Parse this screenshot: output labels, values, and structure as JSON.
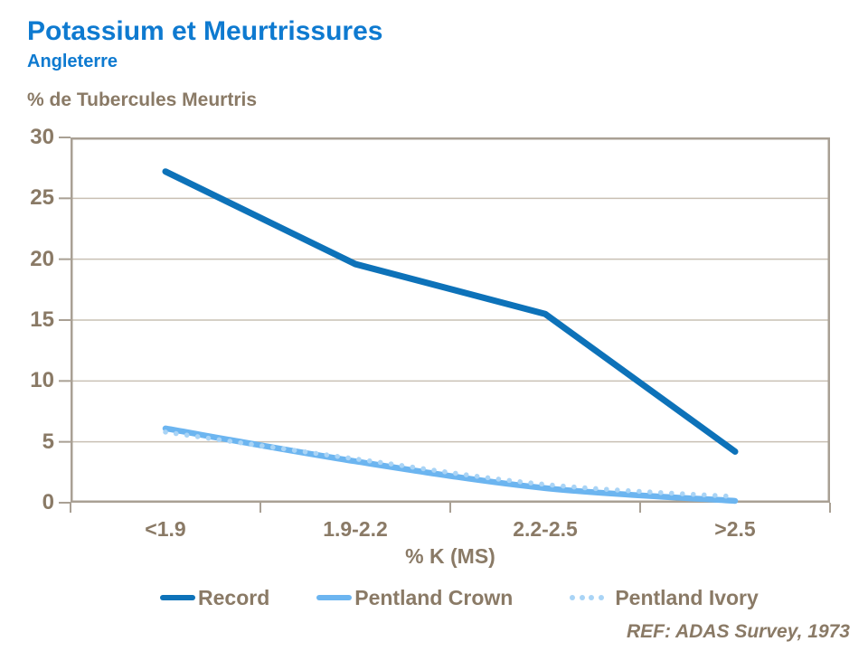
{
  "chart_data": {
    "type": "line",
    "title": "Potassium et Meurtrissures",
    "subtitle": "Angleterre",
    "y_axis_title": "% de Tubercules Meurtris",
    "x_axis_title": "% K (MS)",
    "categories": [
      "<1.9",
      "1.9-2.2",
      "2.2-2.5",
      ">2.5"
    ],
    "y_ticks": [
      0,
      5,
      10,
      15,
      20,
      25,
      30
    ],
    "ylim": [
      0,
      30
    ],
    "grid": "horizontal",
    "legend_position": "bottom",
    "series": [
      {
        "name": "Record",
        "values": [
          27.2,
          19.6,
          15.5,
          4.2
        ],
        "color": "#0d72b9",
        "style": "solid",
        "width": 7,
        "smooth": false
      },
      {
        "name": "Pentland Crown",
        "values": [
          6.1,
          3.4,
          1.2,
          0.15
        ],
        "color": "#6cb5f0",
        "style": "solid",
        "width": 6.5,
        "smooth": true
      },
      {
        "name": "Pentland Ivory",
        "values": [
          5.8,
          3.6,
          1.5,
          0.5
        ],
        "color": "#a9d4f6",
        "style": "dotted",
        "width": 5.5,
        "smooth": true
      }
    ]
  },
  "footer": {
    "reference": "REF: ADAS Survey, 1973"
  },
  "colors": {
    "title_blue": "#0e7ad0",
    "text_brown": "#8a7a66",
    "grid": "#c9c0b4",
    "border": "#a9a094",
    "background": "#ffffff"
  }
}
